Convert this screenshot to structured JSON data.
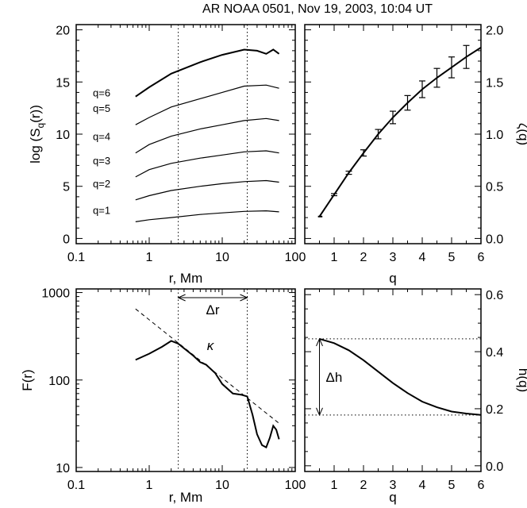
{
  "figure": {
    "title": "AR NOAA 0501, Nov 19, 2003, 10:04 UT"
  },
  "chart_data": [
    {
      "type": "line",
      "xscale": "log",
      "xlim": [
        0.1,
        100
      ],
      "ylim": [
        -0.5,
        20.5
      ],
      "xticks": [
        "0.1",
        "1",
        "10",
        "100"
      ],
      "yticks": [
        "0",
        "5",
        "10",
        "15",
        "20"
      ],
      "xlabel": "r, Mm",
      "ylabel": "log (S_q(r))",
      "ylabel_main": "log (S",
      "ylabel_sub": "q",
      "ylabel_tail": "(r))",
      "vlines": [
        2.5,
        22
      ],
      "series": [
        {
          "name": "q=1",
          "x": [
            0.65,
            1,
            2,
            5,
            10,
            20,
            40,
            60
          ],
          "y": [
            1.6,
            1.8,
            2.0,
            2.3,
            2.45,
            2.6,
            2.65,
            2.55
          ]
        },
        {
          "name": "q=2",
          "x": [
            0.65,
            1,
            2,
            5,
            10,
            20,
            40,
            60
          ],
          "y": [
            3.7,
            4.1,
            4.6,
            5.0,
            5.25,
            5.45,
            5.55,
            5.4
          ]
        },
        {
          "name": "q=3",
          "x": [
            0.65,
            1,
            2,
            5,
            10,
            20,
            40,
            60
          ],
          "y": [
            5.9,
            6.6,
            7.2,
            7.7,
            8.0,
            8.3,
            8.4,
            8.2
          ]
        },
        {
          "name": "q=4",
          "x": [
            0.65,
            1,
            2,
            5,
            10,
            20,
            40,
            60
          ],
          "y": [
            8.2,
            9.0,
            9.8,
            10.5,
            10.9,
            11.3,
            11.5,
            11.3
          ]
        },
        {
          "name": "q=5",
          "x": [
            0.65,
            1,
            2,
            5,
            10,
            20,
            40,
            60
          ],
          "y": [
            10.9,
            11.6,
            12.6,
            13.4,
            14.0,
            14.6,
            14.7,
            14.4
          ]
        },
        {
          "name": "q=6",
          "x": [
            0.65,
            1,
            2,
            5,
            10,
            20,
            30,
            40,
            50,
            60
          ],
          "y": [
            13.6,
            14.5,
            15.8,
            16.9,
            17.6,
            18.1,
            18.0,
            17.7,
            18.1,
            17.7
          ]
        }
      ]
    },
    {
      "type": "line",
      "xlim": [
        0,
        6
      ],
      "ylim": [
        -0.05,
        2.05
      ],
      "xticks": [
        "1",
        "2",
        "3",
        "4",
        "5",
        "6"
      ],
      "yticks": [
        "0.0",
        "0.5",
        "1.0",
        "1.5",
        "2.0"
      ],
      "xlabel": "q",
      "ylabel": "ζ(q)",
      "series": [
        {
          "x": [
            0.5,
            1,
            1.5,
            2,
            2.5,
            3,
            3.5,
            4,
            4.5,
            5,
            5.5,
            6
          ],
          "y": [
            0.21,
            0.42,
            0.63,
            0.82,
            1.0,
            1.16,
            1.3,
            1.43,
            1.54,
            1.64,
            1.74,
            1.83
          ]
        }
      ],
      "errors": {
        "x": [
          1,
          1.5,
          2,
          2.5,
          3,
          3.5,
          4,
          4.5,
          5,
          5.5
        ],
        "y": [
          0.42,
          0.63,
          0.82,
          1.0,
          1.16,
          1.3,
          1.43,
          1.54,
          1.64,
          1.74
        ],
        "err": [
          0.01,
          0.015,
          0.03,
          0.045,
          0.06,
          0.07,
          0.08,
          0.09,
          0.1,
          0.11
        ]
      }
    },
    {
      "type": "line",
      "xscale": "log",
      "yscale": "log",
      "xlim": [
        0.1,
        100
      ],
      "ylim": [
        9,
        1100
      ],
      "xticks": [
        "0.1",
        "1",
        "10",
        "100"
      ],
      "yticks": [
        "10",
        "100",
        "1000"
      ],
      "xlabel": "r, Mm",
      "ylabel": "F(r)",
      "vlines": [
        2.5,
        22
      ],
      "annotations": [
        "Δr",
        "κ"
      ],
      "series": [
        {
          "x": [
            0.65,
            1,
            1.5,
            2,
            2.5,
            3,
            4,
            5,
            6,
            8,
            10,
            14,
            18,
            22,
            26,
            30,
            35,
            40,
            45,
            50,
            55,
            60
          ],
          "y": [
            170,
            200,
            240,
            280,
            260,
            230,
            190,
            160,
            150,
            120,
            90,
            70,
            68,
            65,
            40,
            24,
            18,
            17,
            22,
            30,
            27,
            21
          ]
        }
      ],
      "fit_line": {
        "x": [
          0.65,
          60
        ],
        "y": [
          650,
          32
        ]
      }
    },
    {
      "type": "line",
      "xlim": [
        0,
        6
      ],
      "ylim": [
        -0.02,
        0.62
      ],
      "xticks": [
        "1",
        "2",
        "3",
        "4",
        "5",
        "6"
      ],
      "yticks": [
        "0.0",
        "0.2",
        "0.4",
        "0.6"
      ],
      "xlabel": "q",
      "ylabel": "h(q)",
      "annotations": [
        "Δh"
      ],
      "hlines": [
        0.445,
        0.178
      ],
      "series": [
        {
          "x": [
            0.5,
            1,
            1.5,
            2,
            2.5,
            3,
            3.5,
            4,
            4.5,
            5,
            5.5,
            6
          ],
          "y": [
            0.445,
            0.43,
            0.405,
            0.37,
            0.33,
            0.29,
            0.255,
            0.225,
            0.205,
            0.19,
            0.183,
            0.178
          ]
        }
      ]
    }
  ]
}
